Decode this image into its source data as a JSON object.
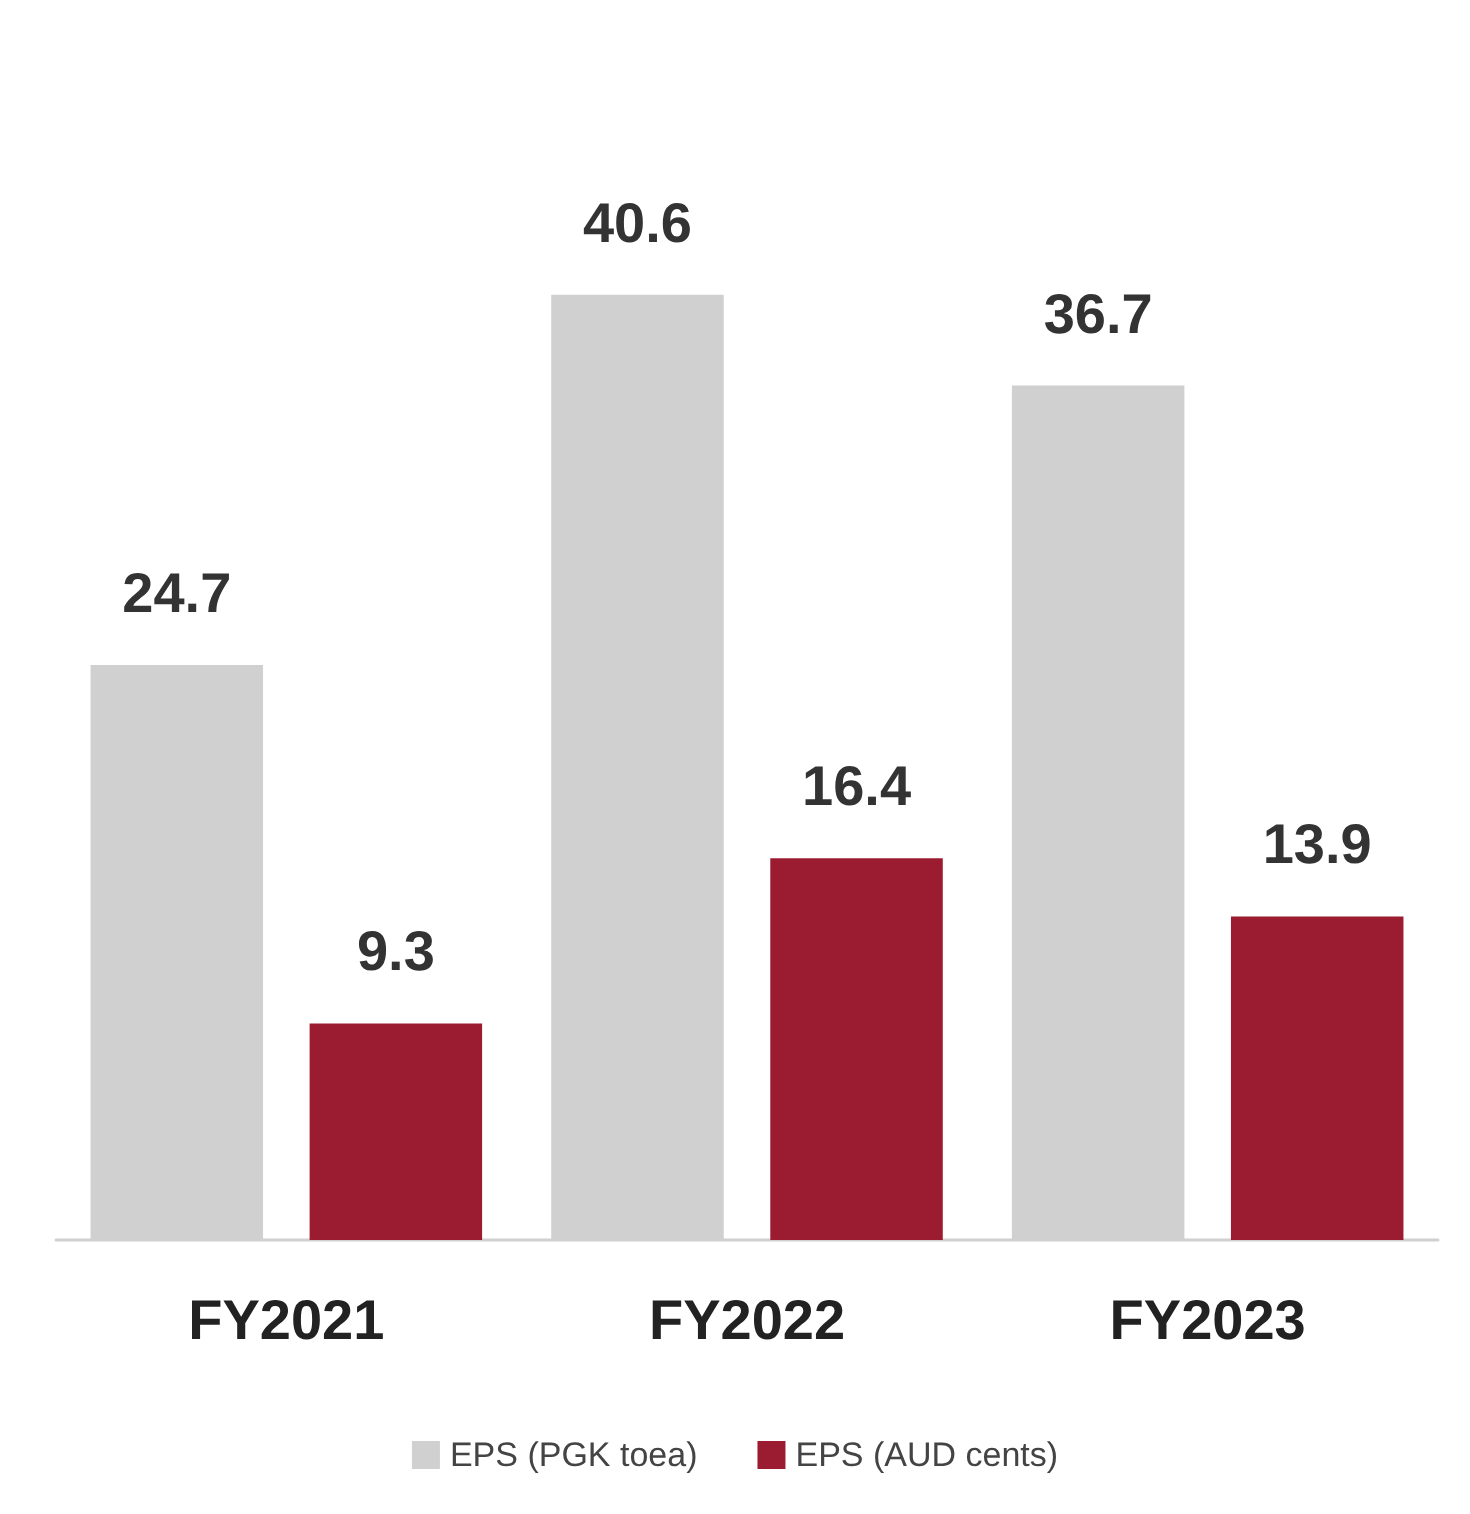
{
  "chart_data": {
    "type": "bar",
    "categories": [
      "FY2021",
      "FY2022",
      "FY2023"
    ],
    "series": [
      {
        "name": "EPS (PGK toea)",
        "color": "#d0d0d0",
        "values": [
          24.7,
          40.6,
          36.7
        ]
      },
      {
        "name": "EPS (AUD cents)",
        "color": "#9b1c31",
        "values": [
          9.3,
          16.4,
          13.9
        ]
      }
    ],
    "data_labels": true,
    "legend": "bottom",
    "grid": false
  }
}
